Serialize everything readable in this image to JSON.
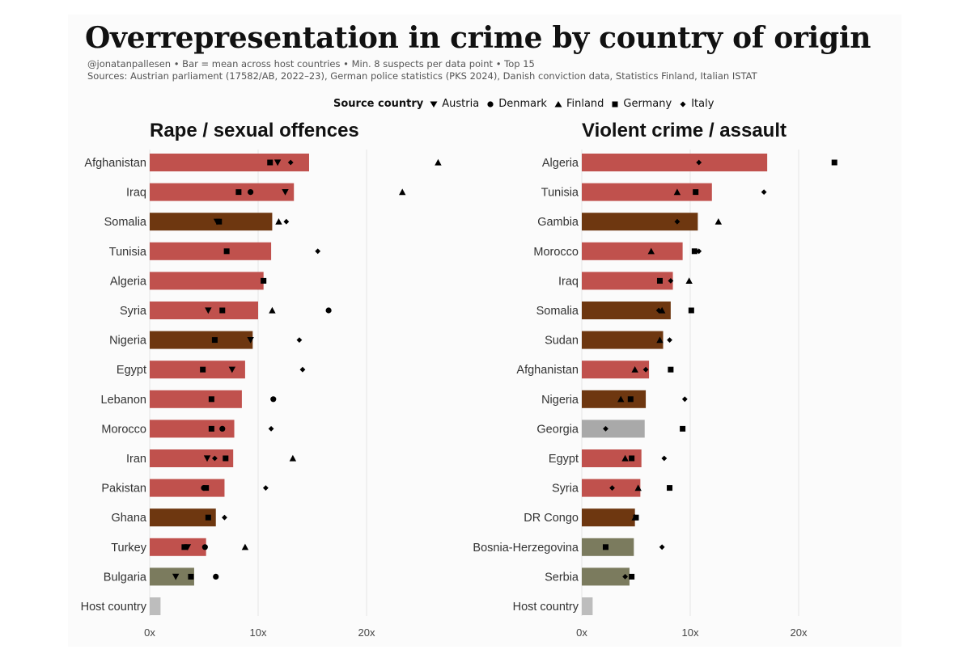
{
  "title": "Overrepresentation in crime by country of origin",
  "subtitle": "@jonatanpallesen • Bar = mean across host countries • Min. 8 suspects per data point • Top 15",
  "sources": "Sources: Austrian parliament (17582/AB, 2022–23), German police statistics (PKS 2024), Danish conviction data, Statistics Finland, Italian ISTAT",
  "legend": {
    "title": "Source country",
    "items": [
      {
        "label": "Austria",
        "shape": "triangle-down"
      },
      {
        "label": "Denmark",
        "shape": "circle"
      },
      {
        "label": "Finland",
        "shape": "triangle-up"
      },
      {
        "label": "Germany",
        "shape": "square"
      },
      {
        "label": "Italy",
        "shape": "diamond"
      }
    ]
  },
  "colors": {
    "middle_east_north_africa": "#c0514d",
    "sub_saharan_africa": "#6e3710",
    "balkans": "#7b7b5e",
    "other": "#a9a9a9",
    "host": "#bdbdbd",
    "marker": "#000000"
  },
  "chart_data": [
    {
      "type": "bar",
      "title": "Rape / sexual offences",
      "xlim": [
        0,
        25
      ],
      "xticks": [
        0,
        10,
        20
      ],
      "tick_labels": [
        "0x",
        "10x",
        "20x"
      ],
      "categories": [
        "Afghanistan",
        "Iraq",
        "Somalia",
        "Tunisia",
        "Algeria",
        "Syria",
        "Nigeria",
        "Egypt",
        "Lebanon",
        "Morocco",
        "Iran",
        "Pakistan",
        "Ghana",
        "Turkey",
        "Bulgaria",
        "Host country"
      ],
      "values": [
        14.7,
        13.3,
        11.3,
        11.2,
        10.5,
        10.0,
        9.5,
        8.8,
        8.5,
        7.8,
        7.7,
        6.9,
        6.1,
        5.2,
        4.1,
        1.0
      ],
      "groups": [
        "middle_east_north_africa",
        "middle_east_north_africa",
        "sub_saharan_africa",
        "middle_east_north_africa",
        "middle_east_north_africa",
        "middle_east_north_africa",
        "sub_saharan_africa",
        "middle_east_north_africa",
        "middle_east_north_africa",
        "middle_east_north_africa",
        "middle_east_north_africa",
        "middle_east_north_africa",
        "sub_saharan_africa",
        "middle_east_north_africa",
        "balkans",
        "host"
      ],
      "series": [
        {
          "name": "Austria",
          "shape": "triangle-down",
          "values": [
            11.8,
            12.5,
            6.2,
            null,
            null,
            5.4,
            9.3,
            7.6,
            null,
            null,
            5.3,
            null,
            null,
            3.5,
            2.4,
            null
          ]
        },
        {
          "name": "Denmark",
          "shape": "circle",
          "values": [
            null,
            9.3,
            null,
            null,
            null,
            16.5,
            null,
            null,
            11.4,
            6.7,
            null,
            5.0,
            null,
            5.1,
            6.1,
            null
          ]
        },
        {
          "name": "Finland",
          "shape": "triangle-up",
          "values": [
            26.6,
            23.3,
            11.9,
            null,
            null,
            11.3,
            null,
            null,
            null,
            null,
            13.2,
            null,
            null,
            8.8,
            null,
            null
          ]
        },
        {
          "name": "Germany",
          "shape": "square",
          "values": [
            11.1,
            8.2,
            6.4,
            7.1,
            10.5,
            6.7,
            6.0,
            4.9,
            5.7,
            5.7,
            7.0,
            5.2,
            5.4,
            3.2,
            3.8,
            null
          ]
        },
        {
          "name": "Italy",
          "shape": "diamond",
          "values": [
            13.0,
            null,
            12.6,
            15.5,
            null,
            null,
            13.8,
            14.1,
            null,
            11.2,
            6.0,
            10.7,
            6.9,
            null,
            null,
            null
          ]
        }
      ]
    },
    {
      "type": "bar",
      "title": "Violent crime / assault",
      "xlim": [
        0,
        25
      ],
      "xticks": [
        0,
        10,
        20
      ],
      "tick_labels": [
        "0x",
        "10x",
        "20x"
      ],
      "categories": [
        "Algeria",
        "Tunisia",
        "Gambia",
        "Morocco",
        "Iraq",
        "Somalia",
        "Sudan",
        "Afghanistan",
        "Nigeria",
        "Georgia",
        "Egypt",
        "Syria",
        "DR Congo",
        "Bosnia-Herzegovina",
        "Serbia",
        "Host country"
      ],
      "values": [
        17.1,
        12.0,
        10.7,
        9.3,
        8.4,
        8.2,
        7.5,
        6.2,
        5.9,
        5.8,
        5.5,
        5.4,
        4.9,
        4.8,
        4.4,
        1.0
      ],
      "groups": [
        "middle_east_north_africa",
        "middle_east_north_africa",
        "sub_saharan_africa",
        "middle_east_north_africa",
        "middle_east_north_africa",
        "sub_saharan_africa",
        "sub_saharan_africa",
        "middle_east_north_africa",
        "sub_saharan_africa",
        "other",
        "middle_east_north_africa",
        "middle_east_north_africa",
        "sub_saharan_africa",
        "balkans",
        "balkans",
        "host"
      ],
      "series": [
        {
          "name": "Austria",
          "shape": "triangle-down",
          "values": [
            null,
            null,
            null,
            null,
            null,
            null,
            null,
            null,
            null,
            null,
            null,
            null,
            null,
            null,
            null,
            null
          ]
        },
        {
          "name": "Denmark",
          "shape": "circle",
          "values": [
            null,
            null,
            null,
            null,
            null,
            null,
            null,
            null,
            null,
            null,
            null,
            null,
            null,
            null,
            null,
            null
          ]
        },
        {
          "name": "Finland",
          "shape": "triangle-up",
          "values": [
            null,
            8.8,
            12.6,
            6.4,
            9.9,
            7.4,
            7.2,
            4.9,
            3.6,
            null,
            4.0,
            5.2,
            4.9,
            null,
            null,
            null
          ]
        },
        {
          "name": "Germany",
          "shape": "square",
          "values": [
            23.3,
            10.5,
            null,
            10.4,
            7.2,
            10.1,
            null,
            8.2,
            4.5,
            9.3,
            4.6,
            8.1,
            5.0,
            2.2,
            4.6,
            null
          ]
        },
        {
          "name": "Italy",
          "shape": "diamond",
          "values": [
            10.8,
            16.8,
            8.8,
            10.8,
            8.2,
            7.1,
            8.1,
            5.9,
            9.5,
            2.2,
            7.6,
            2.8,
            null,
            7.4,
            4.0,
            null
          ]
        }
      ]
    }
  ]
}
